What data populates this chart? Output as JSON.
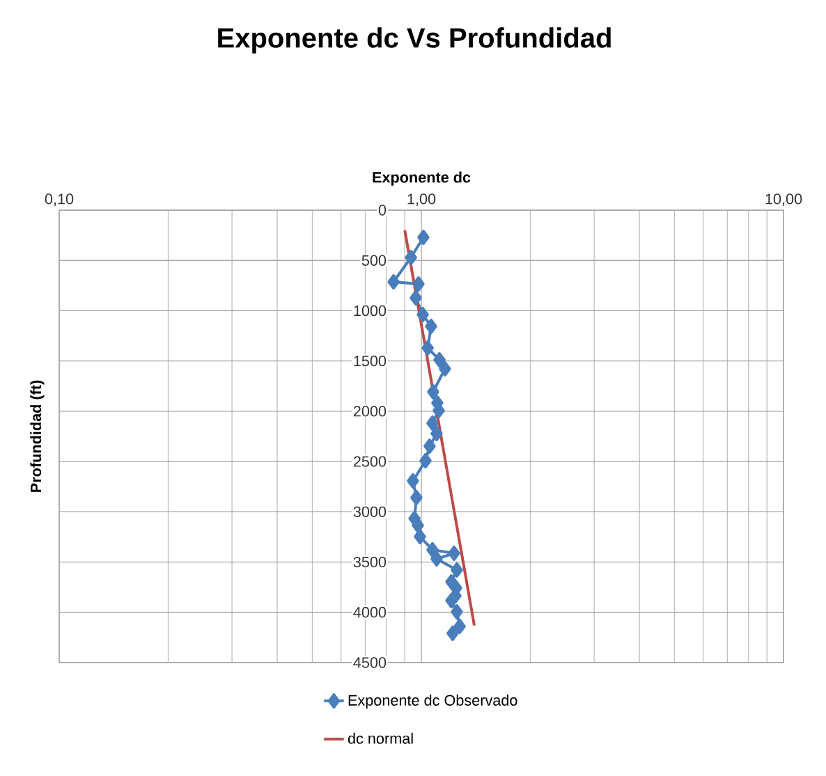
{
  "chart_data": {
    "type": "line",
    "title": "Exponente dc Vs Profundidad",
    "xlabel": "Exponente dc",
    "ylabel": "Profundidad (ft)",
    "log": "x",
    "grid": true,
    "legend": "bottom",
    "xlim": [
      0.1,
      10
    ],
    "xticks": [
      {
        "value": 0.1,
        "label": "0,10"
      },
      {
        "value": 1,
        "label": "1,00"
      },
      {
        "value": 10,
        "label": "10,00"
      }
    ],
    "ylim": [
      4500,
      0
    ],
    "yticks": [
      0,
      500,
      1000,
      1500,
      2000,
      2500,
      3000,
      3500,
      4000,
      4500
    ],
    "series": [
      {
        "name": "Exponente dc Observado",
        "color": "#4a7ebb",
        "marker": "diamond",
        "x": [
          1.013,
          0.936,
          0.838,
          0.982,
          0.965,
          1.009,
          1.064,
          1.041,
          1.122,
          1.162,
          1.078,
          1.107,
          1.117,
          1.073,
          1.102,
          1.054,
          1.027,
          0.948,
          0.969,
          0.957,
          0.978,
          0.991,
          1.073,
          1.231,
          1.102,
          1.253,
          1.21,
          1.248,
          1.242,
          1.21,
          1.253,
          1.276,
          1.22
        ],
        "values": [
          270,
          471,
          713,
          734,
          872,
          1038,
          1156,
          1371,
          1488,
          1578,
          1807,
          1918,
          1994,
          2118,
          2222,
          2347,
          2492,
          2693,
          2859,
          3067,
          3136,
          3247,
          3378,
          3413,
          3469,
          3579,
          3697,
          3759,
          3835,
          3884,
          3995,
          4140,
          4209
        ]
      },
      {
        "name": "dc normal",
        "color": "#be4b48",
        "marker": "none",
        "x": [
          0.9,
          1.4
        ],
        "values": [
          200,
          4130
        ]
      }
    ]
  }
}
